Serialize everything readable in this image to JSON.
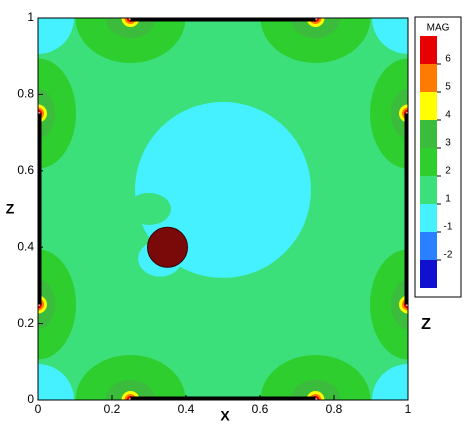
{
  "chart_data": {
    "type": "contour",
    "xlabel": "X",
    "ylabel": "Z",
    "side_label": "Z",
    "xlim": [
      0,
      1
    ],
    "ylim": [
      0,
      1
    ],
    "xticks": [
      0,
      0.2,
      0.4,
      0.6,
      0.8,
      1
    ],
    "yticks": [
      0,
      0.2,
      0.4,
      0.6,
      0.8,
      1
    ],
    "colorbar": {
      "title": "MAG",
      "levels": [
        6,
        5,
        4,
        3,
        2,
        1,
        -1,
        -2
      ],
      "colors": [
        "#e60000",
        "#ff7a00",
        "#ffff00",
        "#3cbc3c",
        "#2ece2e",
        "#3ce07a",
        "#45f0ff",
        "#2a80ff",
        "#1010d0"
      ]
    }
  }
}
